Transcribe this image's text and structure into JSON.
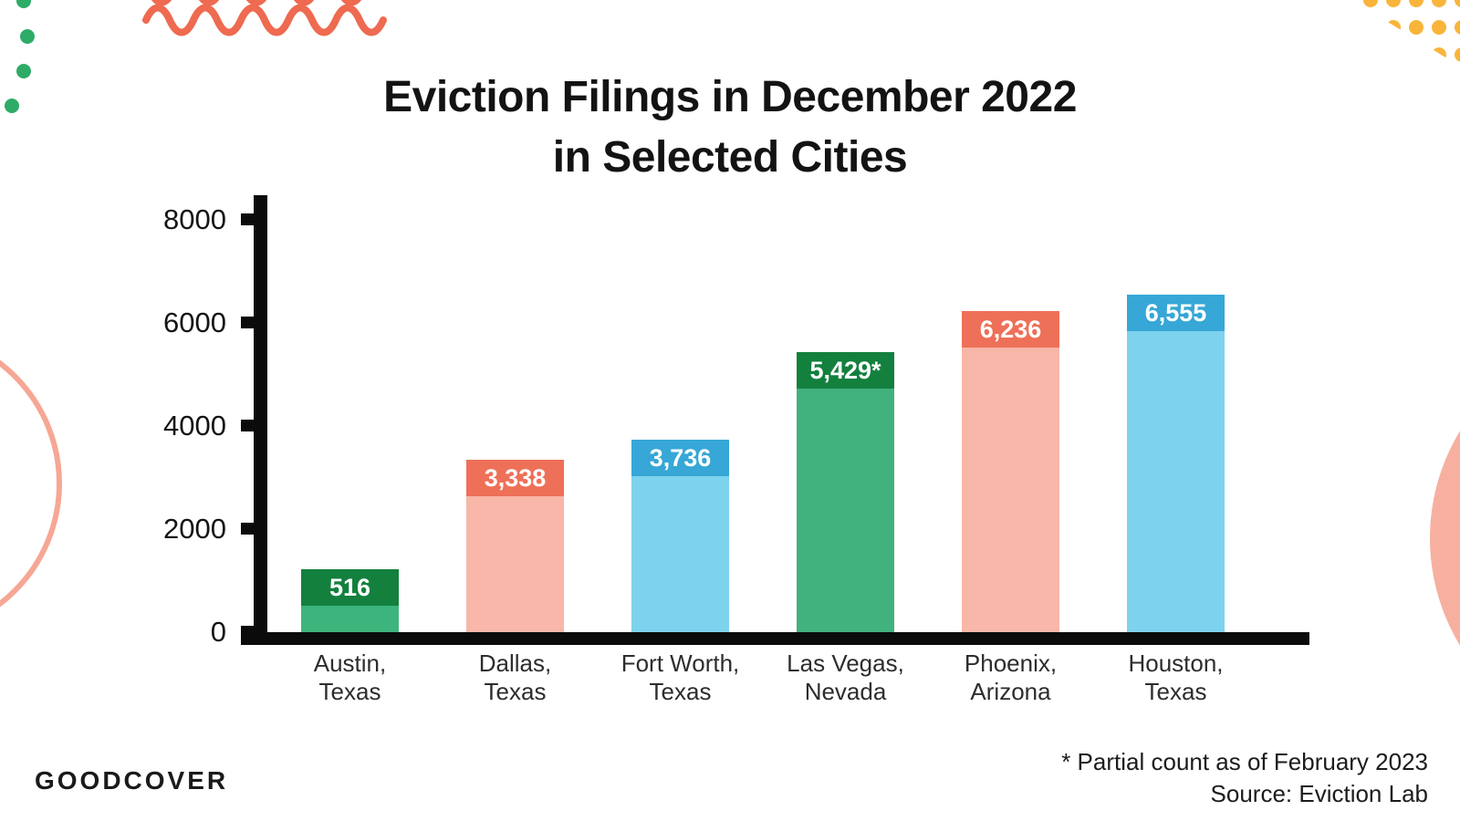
{
  "title": {
    "line1": "Eviction Filings in December 2022",
    "line2": "in Selected Cities"
  },
  "chart_data": {
    "type": "bar",
    "title": "Eviction Filings in December 2022 in Selected Cities",
    "xlabel": "",
    "ylabel": "",
    "ylim": [
      0,
      8000
    ],
    "yticks": [
      0,
      2000,
      4000,
      6000,
      8000
    ],
    "grid": false,
    "legend": false,
    "categories": [
      "Austin, Texas",
      "Dallas, Texas",
      "Fort Worth, Texas",
      "Las Vegas, Nevada",
      "Phoenix, Arizona",
      "Houston, Texas"
    ],
    "values": [
      516,
      3338,
      3736,
      5429,
      6236,
      6555
    ],
    "bars": [
      {
        "city": "Austin,",
        "state": "Texas",
        "value": 516,
        "label": "516",
        "body_color": "#3db47c",
        "cap_color": "#13803e",
        "label_outside": true
      },
      {
        "city": "Dallas,",
        "state": "Texas",
        "value": 3338,
        "label": "3,338",
        "body_color": "#f8b7a8",
        "cap_color": "#ee7058",
        "label_outside": false
      },
      {
        "city": "Fort Worth,",
        "state": "Texas",
        "value": 3736,
        "label": "3,736",
        "body_color": "#7dd3ee",
        "cap_color": "#36a7d6",
        "label_outside": false
      },
      {
        "city": "Las Vegas,",
        "state": "Nevada",
        "value": 5429,
        "label": "5,429*",
        "body_color": "#41b17d",
        "cap_color": "#13803e",
        "label_outside": false
      },
      {
        "city": "Phoenix,",
        "state": "Arizona",
        "value": 6236,
        "label": "6,236",
        "body_color": "#f8b7a8",
        "cap_color": "#ee7058",
        "label_outside": false
      },
      {
        "city": "Houston,",
        "state": "Texas",
        "value": 6555,
        "label": "6,555",
        "body_color": "#7dd3ee",
        "cap_color": "#36a7d6",
        "label_outside": false
      }
    ]
  },
  "footer": {
    "brand": "GOODCOVER",
    "note_line1": "* Partial count as of February 2023",
    "note_line2": "Source: Eviction Lab"
  },
  "colors": {
    "accent_green": "#2fab68",
    "accent_coral": "#ee6a50",
    "accent_yellow": "#f9b43a",
    "accent_pink_outline": "#f6a795",
    "accent_pink_fill": "#f7b0a0",
    "axis_black": "#0b0b0b"
  }
}
